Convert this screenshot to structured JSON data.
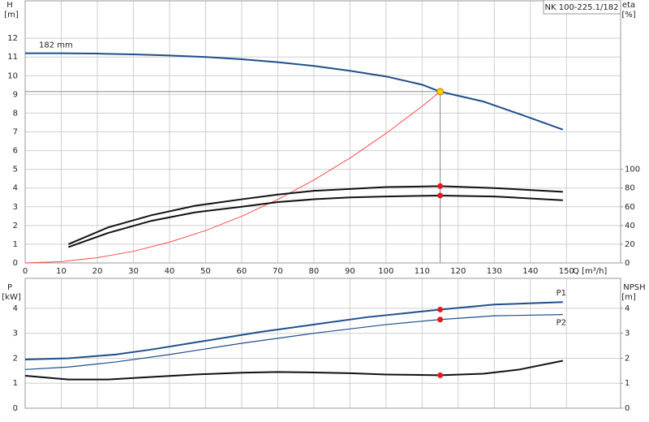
{
  "chart_data": [
    {
      "type": "line",
      "title": "NK 100-225.1/182",
      "y_label": "H",
      "y_unit": "[m]",
      "y2_label": "eta",
      "y2_unit": "[%]",
      "x_label": "Q [m³/h]",
      "xlim": [
        0,
        165
      ],
      "xticks": [
        0,
        10,
        20,
        30,
        40,
        50,
        60,
        70,
        80,
        90,
        100,
        110,
        120,
        130,
        140,
        150
      ],
      "xtick_labels": true,
      "ylim": [
        0,
        14
      ],
      "yticks": [
        0,
        1,
        2,
        3,
        4,
        5,
        6,
        7,
        8,
        9,
        10,
        11,
        12
      ],
      "y2lim": [
        0,
        280
      ],
      "y2ticks": [
        0,
        20,
        40,
        60,
        80,
        100
      ],
      "grid": true,
      "marker_x": 115,
      "duty_point": {
        "x": 115,
        "y": 9.15,
        "color": "#f5d000"
      },
      "series": [
        {
          "name": "182 mm",
          "color": "#1f4e8c",
          "width": 2,
          "marker": false,
          "x": [
            0,
            10,
            20,
            30,
            40,
            50,
            60,
            70,
            80,
            90,
            100,
            110,
            115,
            127,
            137,
            149
          ],
          "values": [
            11.2,
            11.2,
            11.18,
            11.14,
            11.08,
            11.0,
            10.88,
            10.72,
            10.52,
            10.26,
            9.96,
            9.52,
            9.15,
            8.62,
            7.95,
            7.12
          ]
        },
        {
          "color": "#ff4a4a",
          "width": 1,
          "marker": false,
          "x": [
            0,
            10,
            20,
            30,
            40,
            50,
            60,
            70,
            80,
            90,
            100,
            110,
            115
          ],
          "values": [
            0,
            0.07,
            0.28,
            0.62,
            1.11,
            1.73,
            2.49,
            3.39,
            4.43,
            5.6,
            6.92,
            8.37,
            9.15
          ]
        },
        {
          "color": "#111111",
          "width": 2,
          "axis": "y2",
          "marker": true,
          "x": [
            12,
            23,
            35,
            47,
            60,
            70,
            80,
            90,
            100,
            115,
            130,
            149
          ],
          "values": [
            20,
            38,
            51,
            61,
            68,
            73,
            77,
            79,
            81,
            82,
            80,
            76
          ]
        },
        {
          "color": "#111111",
          "width": 2,
          "axis": "y2",
          "marker": true,
          "x": [
            12,
            23,
            35,
            47,
            60,
            70,
            80,
            90,
            100,
            115,
            130,
            149
          ],
          "values": [
            17,
            32,
            45,
            54,
            60,
            65,
            68,
            70,
            71,
            72,
            71,
            67
          ]
        }
      ]
    },
    {
      "type": "line",
      "y_label": "P",
      "y_unit": "[kW]",
      "y2_label": "NPSH",
      "y2_unit": "[m]",
      "xlim": [
        0,
        165
      ],
      "xticks": [
        0,
        10,
        20,
        30,
        40,
        50,
        60,
        70,
        80,
        90,
        100,
        110,
        120,
        130,
        140,
        150
      ],
      "xtick_labels": false,
      "ylim": [
        0,
        5.2
      ],
      "yticks": [
        0,
        1,
        2,
        3,
        4
      ],
      "y2lim": [
        0,
        5.2
      ],
      "y2ticks": [
        0,
        1,
        2,
        3,
        4
      ],
      "grid": true,
      "marker_x": 115,
      "series": [
        {
          "name": "P1",
          "color": "#1f4e8c",
          "width": 2,
          "marker": true,
          "x": [
            0,
            12,
            25,
            35,
            50,
            65,
            80,
            95,
            115,
            130,
            149
          ],
          "values": [
            1.95,
            2.0,
            2.15,
            2.35,
            2.7,
            3.05,
            3.35,
            3.65,
            3.95,
            4.15,
            4.25
          ]
        },
        {
          "name": "P2",
          "color": "#1f4e8c",
          "width": 1.2,
          "marker": true,
          "x": [
            0,
            12,
            25,
            40,
            60,
            80,
            100,
            115,
            130,
            149
          ],
          "values": [
            1.55,
            1.65,
            1.85,
            2.15,
            2.6,
            3.0,
            3.35,
            3.55,
            3.7,
            3.75
          ]
        },
        {
          "color": "#111111",
          "width": 2,
          "axis": "y2",
          "marker": true,
          "x": [
            0,
            12,
            23,
            35,
            47,
            60,
            70,
            80,
            90,
            100,
            115,
            127,
            137,
            149
          ],
          "values": [
            1.3,
            1.15,
            1.15,
            1.25,
            1.35,
            1.42,
            1.45,
            1.43,
            1.4,
            1.35,
            1.32,
            1.38,
            1.55,
            1.9
          ]
        }
      ]
    }
  ]
}
